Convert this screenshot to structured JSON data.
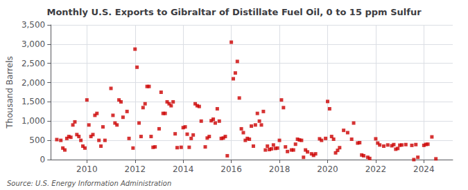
{
  "chart_data": {
    "type": "scatter",
    "title": "Monthly U.S. Exports to Gibraltar of Distillate Fuel Oil, 0 to 15 ppm Sulfur",
    "ylabel": "Thousand Barrels",
    "source": "Source: U.S. Energy Information Administration",
    "color": "#cc0000",
    "marker": "square",
    "grid": true,
    "xlim": [
      2008.5,
      2025.2
    ],
    "xticks": [
      2010,
      2012,
      2014,
      2016,
      2018,
      2020,
      2022,
      2024
    ],
    "ylim": [
      0,
      3500
    ],
    "yticks": [
      0,
      500,
      {
        "value": 1000,
        "label": "1,000"
      },
      {
        "value": 1500,
        "label": "1,500"
      },
      {
        "value": 2000,
        "label": "2,000"
      },
      {
        "value": 2500,
        "label": "2,500"
      },
      {
        "value": 3000,
        "label": "3,000"
      },
      {
        "value": 3500,
        "label": "3,500"
      }
    ],
    "x": [
      2008.75,
      2008.917,
      2009.0,
      2009.083,
      2009.167,
      2009.25,
      2009.333,
      2009.417,
      2009.5,
      2009.583,
      2009.667,
      2009.75,
      2009.833,
      2009.917,
      2010.0,
      2010.083,
      2010.167,
      2010.25,
      2010.333,
      2010.417,
      2010.5,
      2010.583,
      2010.667,
      2010.75,
      2011.0,
      2011.083,
      2011.167,
      2011.25,
      2011.333,
      2011.417,
      2011.5,
      2011.667,
      2011.75,
      2011.917,
      2012.0,
      2012.083,
      2012.167,
      2012.25,
      2012.333,
      2012.417,
      2012.5,
      2012.583,
      2012.667,
      2012.75,
      2012.833,
      2013.0,
      2013.083,
      2013.167,
      2013.25,
      2013.333,
      2013.417,
      2013.5,
      2013.583,
      2013.667,
      2013.75,
      2013.917,
      2014.0,
      2014.083,
      2014.167,
      2014.25,
      2014.333,
      2014.417,
      2014.5,
      2014.583,
      2014.667,
      2014.75,
      2014.917,
      2015.0,
      2015.083,
      2015.167,
      2015.25,
      2015.333,
      2015.417,
      2015.5,
      2015.583,
      2015.667,
      2015.75,
      2015.833,
      2016.0,
      2016.083,
      2016.167,
      2016.25,
      2016.333,
      2016.417,
      2016.5,
      2016.583,
      2016.667,
      2016.75,
      2016.833,
      2016.917,
      2017.0,
      2017.083,
      2017.167,
      2017.25,
      2017.333,
      2017.417,
      2017.5,
      2017.583,
      2017.667,
      2017.75,
      2017.833,
      2017.917,
      2018.0,
      2018.083,
      2018.167,
      2018.25,
      2018.333,
      2018.5,
      2018.583,
      2018.667,
      2018.75,
      2018.833,
      2018.917,
      2019.0,
      2019.083,
      2019.167,
      2019.333,
      2019.417,
      2019.5,
      2019.667,
      2019.75,
      2019.917,
      2020.0,
      2020.083,
      2020.167,
      2020.25,
      2020.333,
      2020.417,
      2020.5,
      2020.667,
      2020.833,
      2021.0,
      2021.083,
      2021.25,
      2021.333,
      2021.417,
      2021.5,
      2021.667,
      2021.75,
      2022.0,
      2022.083,
      2022.167,
      2022.333,
      2022.5,
      2022.667,
      2022.75,
      2022.833,
      2022.917,
      2023.0,
      2023.083,
      2023.25,
      2023.5,
      2023.583,
      2023.667,
      2023.75,
      2024.0,
      2024.083,
      2024.167,
      2024.333,
      2024.5
    ],
    "values": [
      520,
      500,
      300,
      250,
      550,
      600,
      580,
      900,
      980,
      650,
      600,
      500,
      350,
      300,
      1550,
      900,
      600,
      650,
      1150,
      1200,
      500,
      350,
      850,
      500,
      1850,
      1150,
      950,
      900,
      1550,
      1500,
      1100,
      1250,
      550,
      300,
      2870,
      2400,
      950,
      600,
      1350,
      1450,
      1900,
      1900,
      600,
      320,
      330,
      800,
      1750,
      1200,
      1200,
      1500,
      1450,
      1400,
      1500,
      670,
      310,
      320,
      830,
      850,
      660,
      320,
      550,
      640,
      1450,
      1400,
      1380,
      1000,
      330,
      560,
      600,
      1010,
      1050,
      950,
      1320,
      1000,
      550,
      560,
      600,
      100,
      3050,
      2100,
      2250,
      2550,
      1600,
      800,
      700,
      500,
      550,
      530,
      870,
      350,
      900,
      1200,
      1000,
      900,
      1250,
      250,
      350,
      260,
      280,
      380,
      290,
      300,
      500,
      1550,
      1350,
      330,
      210,
      250,
      250,
      400,
      530,
      510,
      500,
      60,
      250,
      200,
      150,
      110,
      150,
      540,
      500,
      550,
      1510,
      1320,
      600,
      530,
      175,
      240,
      310,
      760,
      700,
      530,
      950,
      430,
      440,
      120,
      100,
      60,
      30,
      540,
      430,
      380,
      350,
      380,
      360,
      390,
      270,
      290,
      375,
      380,
      390,
      370,
      0,
      390,
      60,
      370,
      395,
      400,
      590,
      20
    ]
  }
}
